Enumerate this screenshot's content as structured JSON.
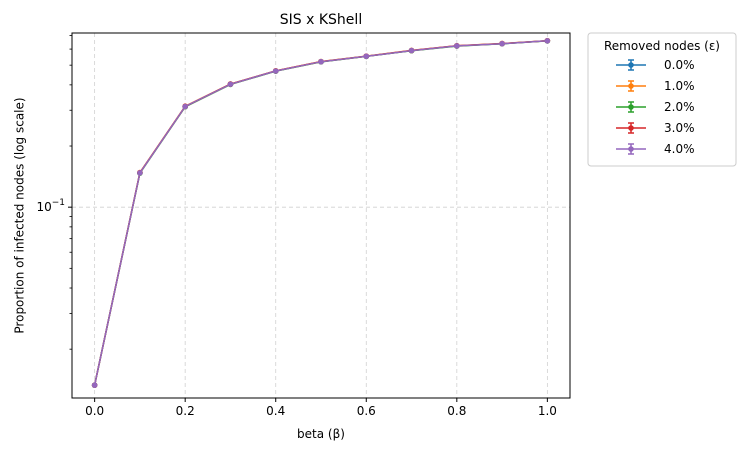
{
  "chart_data": {
    "type": "line",
    "title": "SIS x KShell",
    "xlabel": "beta (β)",
    "ylabel": "Proportion of infected nodes (log scale)",
    "y_scale": "log",
    "grid": true,
    "xlim": [
      -0.05,
      1.05
    ],
    "ylim": [
      0.0115,
      0.72
    ],
    "x_ticks": [
      0.0,
      0.2,
      0.4,
      0.6,
      0.8,
      1.0
    ],
    "x_tick_labels": [
      "0.0",
      "0.2",
      "0.4",
      "0.6",
      "0.8",
      "1.0"
    ],
    "y_major_tick": 0.1,
    "y_major_tick_base": "10",
    "y_major_tick_exp": "−1",
    "legend_title": "Removed nodes (ε)",
    "legend_position": "outside-right",
    "x": [
      0.0,
      0.1,
      0.2,
      0.3,
      0.4,
      0.5,
      0.6,
      0.7,
      0.8,
      0.9,
      1.0
    ],
    "series": [
      {
        "name": "0.0%",
        "color": "#1f77b4",
        "values": [
          0.0133,
          0.1475,
          0.313,
          0.403,
          0.468,
          0.52,
          0.553,
          0.59,
          0.622,
          0.638,
          0.659
        ]
      },
      {
        "name": "1.0%",
        "color": "#ff7f0e",
        "values": [
          0.0133,
          0.148,
          0.314,
          0.404,
          0.469,
          0.521,
          0.554,
          0.591,
          0.623,
          0.639,
          0.66
        ]
      },
      {
        "name": "2.0%",
        "color": "#2ca02c",
        "values": [
          0.0133,
          0.147,
          0.312,
          0.402,
          0.467,
          0.519,
          0.552,
          0.589,
          0.621,
          0.637,
          0.658
        ]
      },
      {
        "name": "3.0%",
        "color": "#d62728",
        "values": [
          0.0133,
          0.1478,
          0.3135,
          0.4035,
          0.4685,
          0.5205,
          0.5535,
          0.5905,
          0.6225,
          0.6385,
          0.6595
        ]
      },
      {
        "name": "4.0%",
        "color": "#9467bd",
        "values": [
          0.0133,
          0.1475,
          0.313,
          0.403,
          0.468,
          0.52,
          0.553,
          0.59,
          0.622,
          0.638,
          0.659
        ]
      }
    ]
  }
}
